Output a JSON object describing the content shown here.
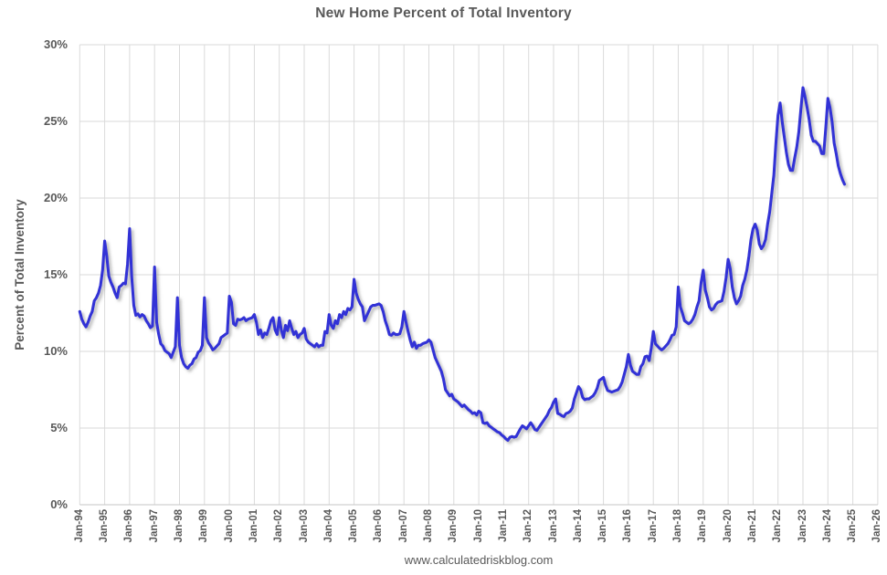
{
  "page": {
    "title": "New Home Percent of Total Inventory",
    "footer": "www.calculatedriskblog.com"
  },
  "chart_data": {
    "type": "line",
    "title": "New Home Percent of Total Inventory",
    "ylabel": "Percent of Total Inventory",
    "xlabel": "",
    "source": "www.calculatedriskblog.com",
    "grid": true,
    "legend": "none",
    "line_color": "#3333d6",
    "grid_color": "#dadada",
    "axis_color": "#c6c6c6",
    "text_color": "#595959",
    "ylim": [
      0,
      30
    ],
    "yticks": [
      0,
      5,
      10,
      15,
      20,
      25,
      30
    ],
    "ytick_labels": [
      "0%",
      "5%",
      "10%",
      "15%",
      "20%",
      "25%",
      "30%"
    ],
    "xtick_labels": [
      "Jan-94",
      "Jan-95",
      "Jan-96",
      "Jan-97",
      "Jan-98",
      "Jan-99",
      "Jan-00",
      "Jan-01",
      "Jan-02",
      "Jan-03",
      "Jan-04",
      "Jan-05",
      "Jan-06",
      "Jan-07",
      "Jan-08",
      "Jan-09",
      "Jan-10",
      "Jan-11",
      "Jan-12",
      "Jan-13",
      "Jan-14",
      "Jan-15",
      "Jan-16",
      "Jan-17",
      "Jan-18",
      "Jan-19",
      "Jan-20",
      "Jan-21",
      "Jan-22",
      "Jan-23",
      "Jan-24",
      "Jan-25",
      "Jan-26"
    ],
    "series": [
      {
        "name": "New Home Percent of Total Inventory",
        "frequency": "monthly",
        "start": "Jan-1994",
        "end": "Sep-2024",
        "values": [
          12.6,
          12.1,
          11.8,
          11.6,
          11.9,
          12.3,
          12.6,
          13.3,
          13.5,
          13.8,
          14.3,
          15.3,
          17.2,
          16.2,
          14.9,
          14.5,
          14.2,
          13.8,
          13.5,
          14.2,
          14.3,
          14.45,
          14.4,
          15.7,
          18.0,
          14.9,
          13.0,
          12.35,
          12.45,
          12.25,
          12.4,
          12.3,
          12.0,
          11.8,
          11.55,
          11.65,
          15.5,
          11.9,
          11.1,
          10.5,
          10.35,
          10.05,
          9.95,
          9.85,
          9.6,
          9.95,
          10.3,
          13.5,
          10.4,
          9.6,
          9.2,
          9.0,
          8.9,
          9.1,
          9.2,
          9.5,
          9.6,
          9.95,
          10.05,
          10.4,
          13.5,
          10.9,
          10.55,
          10.35,
          10.1,
          10.2,
          10.35,
          10.5,
          10.9,
          11.0,
          11.1,
          11.2,
          13.6,
          13.2,
          11.8,
          11.7,
          12.1,
          12.05,
          12.1,
          12.2,
          12.0,
          12.1,
          12.15,
          12.2,
          12.4,
          11.9,
          11.1,
          11.4,
          10.9,
          11.2,
          11.1,
          11.5,
          12.0,
          12.2,
          11.4,
          11.1,
          12.2,
          11.4,
          10.9,
          11.7,
          11.35,
          12.0,
          11.5,
          11.1,
          11.3,
          10.9,
          11.1,
          11.2,
          11.5,
          10.8,
          10.6,
          10.5,
          10.4,
          10.3,
          10.5,
          10.3,
          10.4,
          10.4,
          11.3,
          11.2,
          12.4,
          11.7,
          11.5,
          12.0,
          11.8,
          12.4,
          12.2,
          12.6,
          12.4,
          12.8,
          12.7,
          12.9,
          14.7,
          13.8,
          13.4,
          13.1,
          12.9,
          12.0,
          12.3,
          12.6,
          12.9,
          13.0,
          13.0,
          13.05,
          13.1,
          13.0,
          12.6,
          12.0,
          11.6,
          11.1,
          11.05,
          11.2,
          11.1,
          11.1,
          11.15,
          11.6,
          12.6,
          11.9,
          11.3,
          10.75,
          10.3,
          10.6,
          10.2,
          10.4,
          10.4,
          10.5,
          10.55,
          10.6,
          10.75,
          10.6,
          10.1,
          9.6,
          9.3,
          9.0,
          8.7,
          8.2,
          7.5,
          7.3,
          7.1,
          7.2,
          6.9,
          6.8,
          6.7,
          6.55,
          6.4,
          6.5,
          6.35,
          6.2,
          6.1,
          5.95,
          6.0,
          5.85,
          6.1,
          6.0,
          5.35,
          5.3,
          5.35,
          5.15,
          5.05,
          4.95,
          4.85,
          4.75,
          4.7,
          4.55,
          4.45,
          4.3,
          4.2,
          4.4,
          4.45,
          4.4,
          4.45,
          4.7,
          4.95,
          5.15,
          5.05,
          4.95,
          5.15,
          5.35,
          5.15,
          4.9,
          4.85,
          5.05,
          5.25,
          5.45,
          5.65,
          5.85,
          6.15,
          6.35,
          6.7,
          6.9,
          5.95,
          5.9,
          5.8,
          5.75,
          5.95,
          6.0,
          6.1,
          6.3,
          6.9,
          7.3,
          7.7,
          7.5,
          7.0,
          6.85,
          6.9,
          6.9,
          7.0,
          7.1,
          7.3,
          7.6,
          8.1,
          8.2,
          8.3,
          7.8,
          7.45,
          7.4,
          7.35,
          7.4,
          7.45,
          7.5,
          7.7,
          8.0,
          8.5,
          9.0,
          9.8,
          9.1,
          8.7,
          8.6,
          8.5,
          8.5,
          9.0,
          9.2,
          9.65,
          9.7,
          9.4,
          10.2,
          11.3,
          10.5,
          10.35,
          10.2,
          10.1,
          10.2,
          10.35,
          10.5,
          10.75,
          11.05,
          11.1,
          11.6,
          14.2,
          12.9,
          12.5,
          12.0,
          11.9,
          11.8,
          11.9,
          12.1,
          12.4,
          12.9,
          13.3,
          14.5,
          15.3,
          14.0,
          13.5,
          12.9,
          12.7,
          12.8,
          13.05,
          13.2,
          13.25,
          13.3,
          13.9,
          14.8,
          16.0,
          15.4,
          14.2,
          13.5,
          13.1,
          13.3,
          13.6,
          14.3,
          14.7,
          15.3,
          16.2,
          17.3,
          18.0,
          18.3,
          17.9,
          17.0,
          16.7,
          16.9,
          17.3,
          18.3,
          19.1,
          20.3,
          21.5,
          23.6,
          25.4,
          26.2,
          25.0,
          24.0,
          23.0,
          22.2,
          21.8,
          21.8,
          22.6,
          23.3,
          24.3,
          25.8,
          27.2,
          26.6,
          25.9,
          25.1,
          24.1,
          23.7,
          23.7,
          23.55,
          23.4,
          22.9,
          22.9,
          24.6,
          26.5,
          25.9,
          25.0,
          23.6,
          22.9,
          22.1,
          21.6,
          21.2,
          20.9
        ]
      }
    ]
  }
}
